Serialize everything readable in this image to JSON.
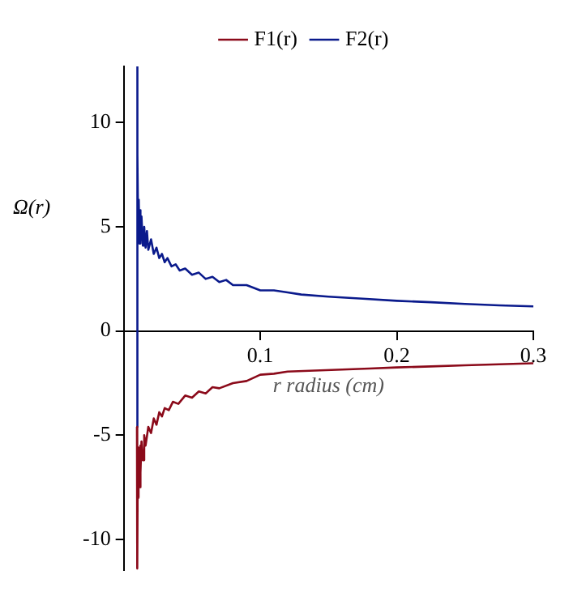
{
  "chart_data": {
    "type": "line",
    "xlabel": "r radius (cm)",
    "ylabel": "Ω(r)",
    "xlim": [
      0,
      0.3
    ],
    "xticks": [
      0.1,
      0.2,
      0.3
    ],
    "ylim": [
      -11.5,
      12.7
    ],
    "yticks": [
      -10,
      -5,
      0,
      5,
      10
    ],
    "grid": false,
    "legend": "top",
    "marker": "none",
    "line_style": "solid",
    "series": [
      {
        "name": "F1(r)",
        "color": "#8b0a1a",
        "x": [
          0.0097,
          0.0099,
          0.0103,
          0.0107,
          0.011,
          0.0115,
          0.012,
          0.0125,
          0.013,
          0.014,
          0.015,
          0.016,
          0.018,
          0.02,
          0.022,
          0.024,
          0.026,
          0.028,
          0.03,
          0.033,
          0.036,
          0.04,
          0.045,
          0.05,
          0.055,
          0.06,
          0.065,
          0.07,
          0.08,
          0.09,
          0.1,
          0.11,
          0.12,
          0.14,
          0.16,
          0.18,
          0.2,
          0.225,
          0.25,
          0.275,
          0.3
        ],
        "values": [
          -4.6,
          -11.4,
          -6.0,
          -8.0,
          -5.6,
          -7.5,
          -5.5,
          -6.8,
          -5.3,
          -6.2,
          -5.0,
          -5.5,
          -4.6,
          -4.9,
          -4.2,
          -4.5,
          -3.9,
          -4.1,
          -3.7,
          -3.8,
          -3.4,
          -3.5,
          -3.1,
          -3.2,
          -2.9,
          -3.0,
          -2.7,
          -2.75,
          -2.5,
          -2.4,
          -2.1,
          -2.05,
          -1.95,
          -1.9,
          -1.85,
          -1.8,
          -1.75,
          -1.7,
          -1.65,
          -1.6,
          -1.55
        ]
      },
      {
        "name": "F2(r)",
        "color": "#0a1a8c",
        "x": [
          0.0095,
          0.0098,
          0.0102,
          0.0106,
          0.011,
          0.0115,
          0.012,
          0.0125,
          0.013,
          0.014,
          0.015,
          0.016,
          0.017,
          0.018,
          0.02,
          0.022,
          0.024,
          0.026,
          0.028,
          0.03,
          0.032,
          0.035,
          0.038,
          0.041,
          0.045,
          0.05,
          0.055,
          0.06,
          0.065,
          0.07,
          0.075,
          0.08,
          0.09,
          0.1,
          0.11,
          0.12,
          0.13,
          0.15,
          0.175,
          0.2,
          0.225,
          0.25,
          0.275,
          0.3
        ],
        "values": [
          -4.6,
          12.7,
          8.5,
          4.5,
          6.3,
          4.2,
          5.8,
          4.3,
          5.5,
          4.1,
          5.0,
          4.0,
          4.8,
          3.9,
          4.4,
          3.7,
          4.0,
          3.5,
          3.7,
          3.3,
          3.5,
          3.1,
          3.2,
          2.9,
          3.0,
          2.7,
          2.8,
          2.5,
          2.6,
          2.35,
          2.45,
          2.2,
          2.2,
          1.95,
          1.95,
          1.85,
          1.75,
          1.65,
          1.55,
          1.45,
          1.38,
          1.3,
          1.23,
          1.18
        ]
      }
    ]
  }
}
